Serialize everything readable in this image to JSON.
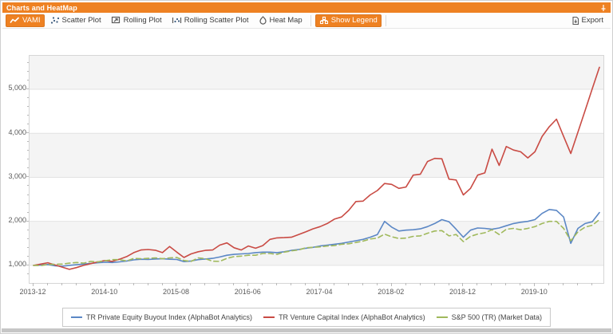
{
  "window": {
    "title": "Charts and HeatMap"
  },
  "theme": {
    "accent_orange": "#ee8122",
    "titlebar_text": "#ffffff",
    "plot_band_gray": "#f4f4f4",
    "gridline": "#e2e2e2",
    "axis_text": "#5b5b5b"
  },
  "toolbar": {
    "buttons": [
      {
        "label": "VAMI",
        "icon": "line-chart-icon",
        "active": true
      },
      {
        "label": "Scatter Plot",
        "icon": "scatter-plot-icon",
        "active": false
      },
      {
        "label": "Rolling Plot",
        "icon": "rolling-plot-icon",
        "active": false
      },
      {
        "label": "Rolling Scatter Plot",
        "icon": "rolling-scatter-plot-icon",
        "active": false
      },
      {
        "label": "Heat Map",
        "icon": "heat-map-icon",
        "active": false
      },
      {
        "label": "Show Legend",
        "icon": "show-legend-icon",
        "active": true
      }
    ],
    "export_label": "Export"
  },
  "chart_data": {
    "type": "line",
    "x_start": "2013-12",
    "x_interval": "monthly",
    "x_tick_labels": [
      "2013-12",
      "2014-10",
      "2015-08",
      "2016-06",
      "2017-04",
      "2018-02",
      "2018-12",
      "2019-10"
    ],
    "x_tick_month_indices": [
      0,
      10,
      20,
      30,
      40,
      50,
      60,
      70
    ],
    "y_ticks": [
      1000,
      2000,
      3000,
      4000,
      5000
    ],
    "y_tick_labels": [
      "1,000",
      "2,000",
      "3,000",
      "4,000",
      "5,000"
    ],
    "ylim": [
      600,
      5760
    ],
    "grid": "horizontal",
    "legend_position": "bottom",
    "series": [
      {
        "name": "TR Private Equity Buyout Index (AlphaBot Analytics)",
        "color": "#5b87c5",
        "style": "solid",
        "values": [
          1000,
          1005,
          1020,
          990,
          980,
          1000,
          1015,
          1030,
          1045,
          1060,
          1070,
          1065,
          1080,
          1100,
          1125,
          1140,
          1135,
          1145,
          1150,
          1140,
          1135,
          1085,
          1100,
          1130,
          1145,
          1160,
          1190,
          1230,
          1250,
          1260,
          1270,
          1290,
          1300,
          1300,
          1290,
          1310,
          1340,
          1360,
          1390,
          1410,
          1440,
          1460,
          1480,
          1500,
          1530,
          1560,
          1590,
          1640,
          1700,
          2000,
          1870,
          1780,
          1800,
          1810,
          1830,
          1880,
          1950,
          2040,
          1990,
          1820,
          1640,
          1800,
          1850,
          1840,
          1820,
          1850,
          1900,
          1950,
          1980,
          2000,
          2040,
          2180,
          2270,
          2250,
          2100,
          1500,
          1840,
          1950,
          1990,
          2200
        ]
      },
      {
        "name": "TR Venture Capital Index (AlphaBot Analytics)",
        "color": "#c94b44",
        "style": "solid",
        "values": [
          1000,
          1030,
          1060,
          1010,
          960,
          910,
          950,
          1000,
          1040,
          1080,
          1110,
          1090,
          1140,
          1200,
          1290,
          1350,
          1360,
          1345,
          1290,
          1430,
          1300,
          1180,
          1260,
          1310,
          1340,
          1350,
          1460,
          1510,
          1400,
          1350,
          1440,
          1390,
          1450,
          1590,
          1625,
          1630,
          1640,
          1700,
          1760,
          1830,
          1880,
          1950,
          2050,
          2100,
          2250,
          2450,
          2460,
          2600,
          2700,
          2860,
          2840,
          2750,
          2780,
          3050,
          3070,
          3360,
          3430,
          3420,
          2960,
          2940,
          2600,
          2750,
          3050,
          3100,
          3640,
          3270,
          3700,
          3620,
          3580,
          3440,
          3580,
          3930,
          4150,
          4320,
          3930,
          3540,
          4030,
          4520,
          5010,
          5500
        ]
      },
      {
        "name": "S&P 500 (TR) (Market Data)",
        "color": "#a0b95c",
        "style": "dashed",
        "values": [
          1000,
          995,
          1020,
          1025,
          1030,
          1050,
          1065,
          1050,
          1090,
          1080,
          1105,
          1130,
          1130,
          1100,
          1160,
          1150,
          1160,
          1170,
          1150,
          1170,
          1180,
          1110,
          1090,
          1170,
          1150,
          1095,
          1090,
          1160,
          1200,
          1210,
          1230,
          1230,
          1270,
          1270,
          1250,
          1300,
          1330,
          1350,
          1400,
          1410,
          1420,
          1440,
          1450,
          1480,
          1490,
          1520,
          1550,
          1600,
          1620,
          1710,
          1650,
          1610,
          1620,
          1660,
          1670,
          1730,
          1780,
          1790,
          1670,
          1700,
          1540,
          1660,
          1710,
          1740,
          1810,
          1700,
          1820,
          1840,
          1810,
          1840,
          1880,
          1950,
          2000,
          2000,
          1840,
          1560,
          1760,
          1870,
          1910,
          2040
        ]
      }
    ]
  }
}
